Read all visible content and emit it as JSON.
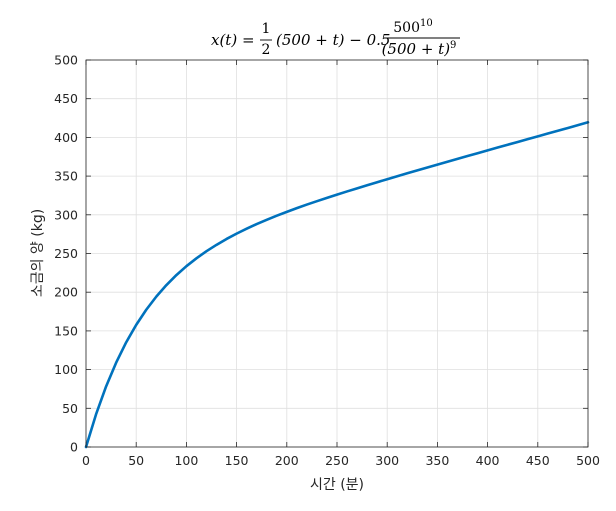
{
  "chart_data": {
    "type": "line",
    "title_parts": {
      "lhs": "x(t) = ",
      "half_num": "1",
      "half_den": "2",
      "mid": "(500 + t) − 0.5",
      "frac_num": "500",
      "frac_num_exp": "10",
      "frac_den": "(500 + t)",
      "frac_den_exp": "9"
    },
    "xlabel": "시간 (분)",
    "ylabel": "소금의 양 (kg)",
    "xlim": [
      0,
      500
    ],
    "ylim": [
      0,
      500
    ],
    "xticks": [
      0,
      50,
      100,
      150,
      200,
      250,
      300,
      350,
      400,
      450,
      500
    ],
    "yticks": [
      0,
      50,
      100,
      150,
      200,
      250,
      300,
      350,
      400,
      450,
      500
    ],
    "grid": true,
    "series": [
      {
        "color": "#0072bd",
        "x": [
          0,
          10,
          20,
          30,
          40,
          50,
          60,
          70,
          80,
          90,
          100,
          110,
          120,
          130,
          140,
          150,
          160,
          170,
          180,
          190,
          200,
          210,
          220,
          230,
          240,
          250,
          260,
          270,
          280,
          290,
          300,
          310,
          320,
          330,
          340,
          350,
          360,
          370,
          380,
          390,
          400,
          410,
          420,
          430,
          440,
          450,
          460,
          470,
          480,
          490,
          500
        ],
        "y": [
          0,
          42.2,
          78.2,
          108.9,
          135.2,
          157.8,
          177.3,
          194.3,
          209.1,
          222.1,
          233.6,
          243.8,
          253.0,
          261.2,
          268.8,
          275.7,
          282.0,
          288.0,
          293.5,
          298.8,
          303.8,
          308.6,
          313.2,
          317.6,
          321.9,
          326.1,
          330.2,
          334.2,
          338.2,
          342.1,
          346.0,
          349.8,
          353.6,
          357.4,
          361.1,
          364.8,
          368.5,
          372.2,
          375.9,
          379.6,
          383.2,
          386.9,
          390.5,
          394.1,
          397.8,
          401.4,
          405.0,
          408.6,
          412.2,
          415.8,
          419.5
        ]
      }
    ]
  }
}
